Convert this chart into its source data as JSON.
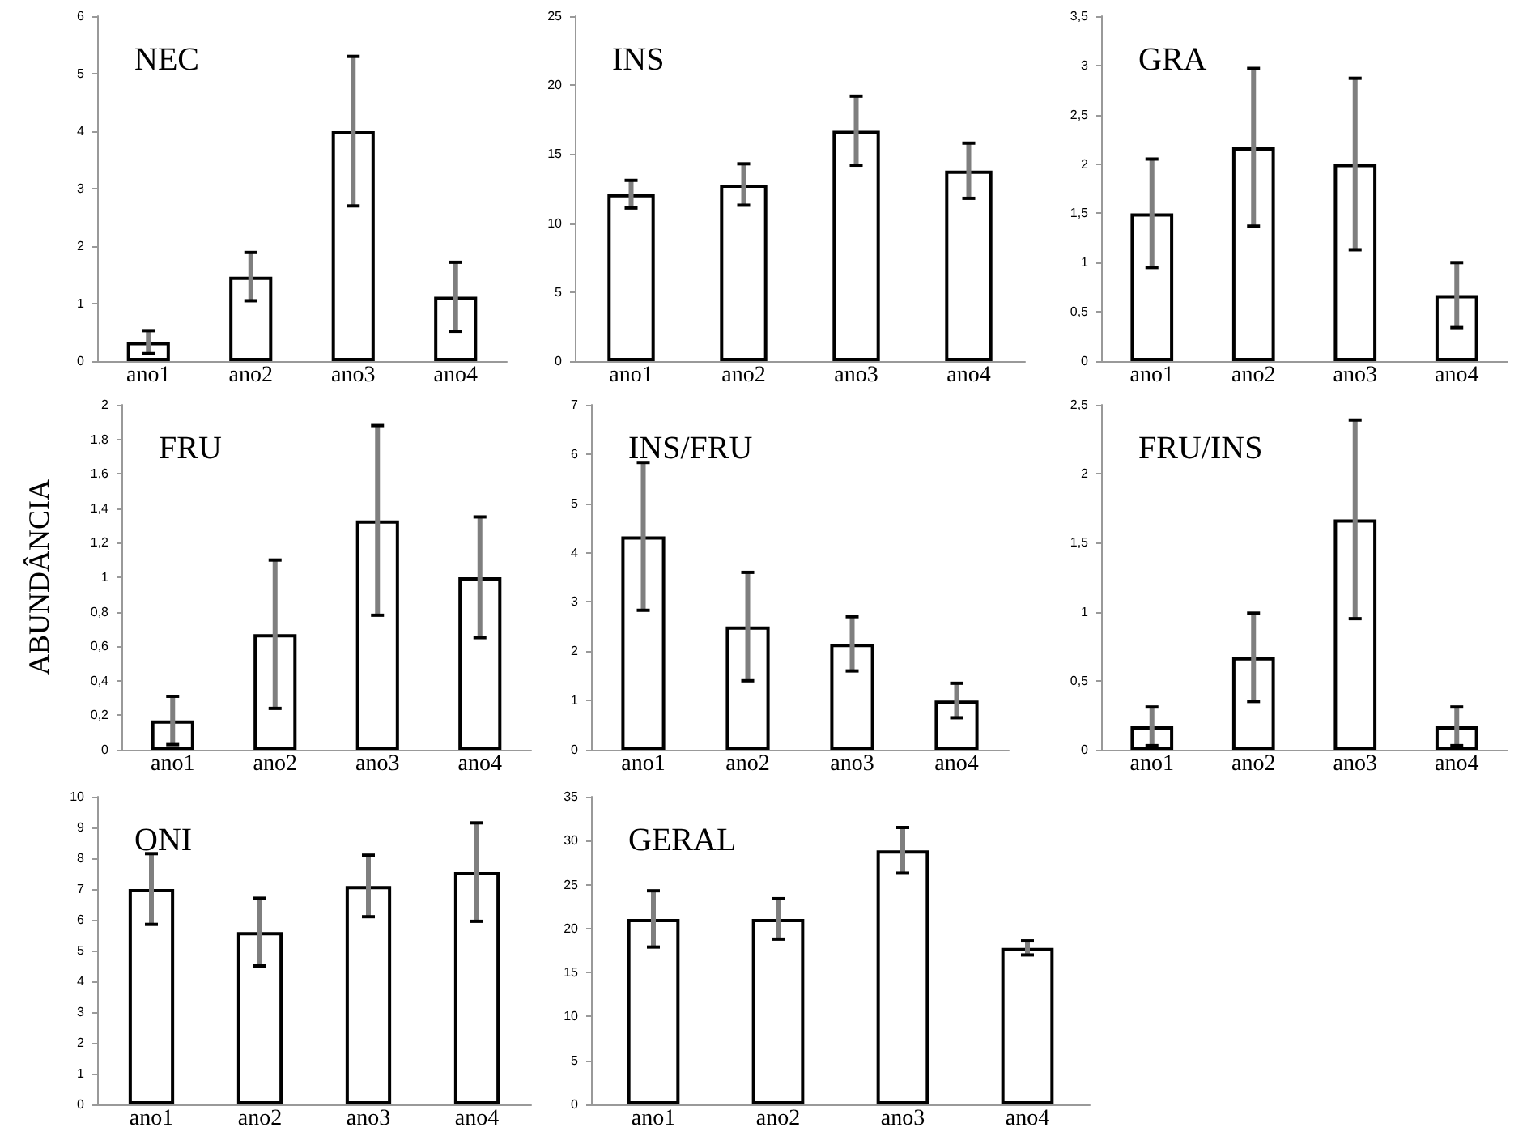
{
  "chart_data": [
    {
      "type": "bar",
      "title": "NEC",
      "categories": [
        "ano1",
        "ano2",
        "ano3",
        "ano4"
      ],
      "values": [
        0.33,
        1.47,
        4.0,
        1.12
      ],
      "errors": [
        0.2,
        0.42,
        1.3,
        0.6
      ],
      "color": "#ffffff",
      "ylim": [
        0,
        6
      ],
      "yticks": [
        0,
        1,
        2,
        3,
        4,
        5,
        6
      ],
      "grid": false
    },
    {
      "type": "bar",
      "title": "INS",
      "categories": [
        "ano1",
        "ano2",
        "ano3",
        "ano4"
      ],
      "values": [
        12.1,
        12.8,
        16.7,
        13.8
      ],
      "errors": [
        1.0,
        1.5,
        2.5,
        2.0
      ],
      "color": "#ffffff",
      "ylim": [
        0,
        25
      ],
      "yticks": [
        0,
        5,
        10,
        15,
        20,
        25
      ],
      "grid": false
    },
    {
      "type": "bar",
      "title": "GRA",
      "categories": [
        "ano1",
        "ano2",
        "ano3",
        "ano4"
      ],
      "values": [
        1.5,
        2.17,
        2.0,
        0.67
      ],
      "errors": [
        0.55,
        0.8,
        0.87,
        0.33
      ],
      "color": "#ffffff",
      "ylim": [
        0,
        3.5
      ],
      "yticks": [
        0,
        {
          "value": 0.5,
          "label": "0,5"
        },
        1,
        {
          "value": 1.5,
          "label": "1,5"
        },
        2,
        {
          "value": 2.5,
          "label": "2,5"
        },
        3,
        {
          "value": 3.5,
          "label": "3,5"
        }
      ],
      "grid": false
    },
    {
      "type": "bar",
      "title": "FRU",
      "ylabel": "ABUNDÂNCIA",
      "categories": [
        "ano1",
        "ano2",
        "ano3",
        "ano4"
      ],
      "values": [
        0.17,
        0.67,
        1.33,
        1.0
      ],
      "errors": [
        0.14,
        0.43,
        0.55,
        0.35
      ],
      "color": "#ffffff",
      "ylim": [
        0,
        2
      ],
      "yticks": [
        0,
        {
          "value": 0.2,
          "label": "0,2"
        },
        {
          "value": 0.4,
          "label": "0,4"
        },
        {
          "value": 0.6,
          "label": "0,6"
        },
        {
          "value": 0.8,
          "label": "0,8"
        },
        1,
        {
          "value": 1.2,
          "label": "1,2"
        },
        {
          "value": 1.4,
          "label": "1,4"
        },
        {
          "value": 1.6,
          "label": "1,6"
        },
        {
          "value": 1.8,
          "label": "1,8"
        },
        2
      ],
      "grid": false
    },
    {
      "type": "bar",
      "title": "INS/FRU",
      "categories": [
        "ano1",
        "ano2",
        "ano3",
        "ano4"
      ],
      "values": [
        4.33,
        2.5,
        2.15,
        1.0
      ],
      "errors": [
        1.5,
        1.1,
        0.55,
        0.35
      ],
      "color": "#ffffff",
      "ylim": [
        0,
        7
      ],
      "yticks": [
        0,
        1,
        2,
        3,
        4,
        5,
        6,
        7
      ],
      "grid": false
    },
    {
      "type": "bar",
      "title": "FRU/INS",
      "categories": [
        "ano1",
        "ano2",
        "ano3",
        "ano4"
      ],
      "values": [
        0.17,
        0.67,
        1.67,
        0.17
      ],
      "errors": [
        0.14,
        0.32,
        0.72,
        0.14
      ],
      "color": "#ffffff",
      "ylim": [
        0,
        2.5
      ],
      "yticks": [
        0,
        {
          "value": 0.5,
          "label": "0,5"
        },
        1,
        {
          "value": 1.5,
          "label": "1,5"
        },
        2,
        {
          "value": 2.5,
          "label": "2,5"
        }
      ],
      "grid": false
    },
    {
      "type": "bar",
      "title": "ONI",
      "categories": [
        "ano1",
        "ano2",
        "ano3",
        "ano4"
      ],
      "values": [
        7.0,
        5.6,
        7.1,
        7.55
      ],
      "errors": [
        1.15,
        1.1,
        1.0,
        1.6
      ],
      "color": "#ffffff",
      "ylim": [
        0,
        10
      ],
      "yticks": [
        0,
        1,
        2,
        3,
        4,
        5,
        6,
        7,
        8,
        9,
        10
      ],
      "grid": false
    },
    {
      "type": "bar",
      "title": "GERAL",
      "categories": [
        "ano1",
        "ano2",
        "ano3",
        "ano4"
      ],
      "values": [
        21.1,
        21.1,
        28.9,
        17.8
      ],
      "errors": [
        3.2,
        2.3,
        2.6,
        0.8
      ],
      "color": "#ffffff",
      "ylim": [
        0,
        35
      ],
      "yticks": [
        0,
        5,
        10,
        15,
        20,
        25,
        30,
        35
      ],
      "grid": false
    }
  ]
}
